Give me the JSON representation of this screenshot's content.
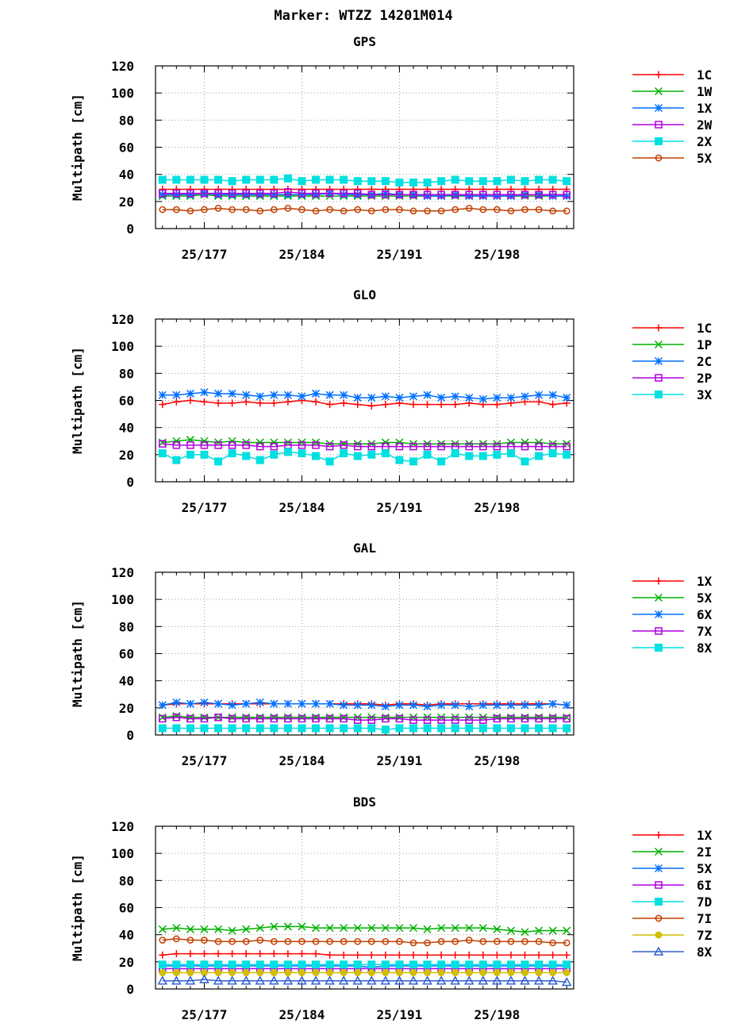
{
  "title": "Marker: WTZZ 14201M014",
  "chart_data": [
    {
      "type": "line",
      "title": "GPS",
      "ylabel": "Multipath [cm]",
      "ylim": [
        0,
        120
      ],
      "yticks": [
        0,
        20,
        40,
        60,
        80,
        100,
        120
      ],
      "xlim": [
        173.5,
        203.5
      ],
      "xticks": [
        {
          "x": 177,
          "label": "25/177"
        },
        {
          "x": 184,
          "label": "25/184"
        },
        {
          "x": 191,
          "label": "25/191"
        },
        {
          "x": 198,
          "label": "25/198"
        }
      ],
      "x": [
        174,
        175,
        176,
        177,
        178,
        179,
        180,
        181,
        182,
        183,
        184,
        185,
        186,
        187,
        188,
        189,
        190,
        191,
        192,
        193,
        194,
        195,
        196,
        197,
        198,
        199,
        200,
        201,
        202,
        203
      ],
      "grid": true,
      "legend": "right",
      "series": [
        {
          "name": "1C",
          "color": "#ff0000",
          "marker": "plus",
          "values": [
            29,
            29,
            29,
            29,
            29,
            29,
            29,
            29,
            29,
            29,
            29,
            29,
            29,
            29,
            29,
            29,
            29,
            29,
            29,
            29,
            29,
            29,
            29,
            29,
            29,
            29,
            29,
            29,
            29,
            29
          ]
        },
        {
          "name": "1W",
          "color": "#00b000",
          "marker": "x",
          "values": [
            24,
            24,
            24,
            25,
            24,
            24,
            24,
            24,
            24,
            24,
            24,
            24,
            24,
            24,
            24,
            24,
            24,
            24,
            24,
            24,
            24,
            24,
            24,
            24,
            24,
            24,
            24,
            24,
            24,
            24
          ]
        },
        {
          "name": "1X",
          "color": "#0070ff",
          "marker": "star",
          "values": [
            25,
            25,
            25,
            26,
            25,
            25,
            25,
            25,
            25,
            25,
            25,
            25,
            26,
            25,
            25,
            25,
            26,
            25,
            25,
            24,
            24,
            25,
            24,
            24,
            24,
            24,
            25,
            25,
            24,
            24
          ]
        },
        {
          "name": "2W",
          "color": "#b000e0",
          "marker": "square-open",
          "values": [
            26,
            26,
            26,
            26,
            26,
            26,
            26,
            26,
            26,
            27,
            26,
            26,
            26,
            26,
            26,
            25,
            25,
            25,
            25,
            25,
            25,
            25,
            25,
            25,
            25,
            25,
            25,
            25,
            25,
            25
          ]
        },
        {
          "name": "2X",
          "color": "#00e0e0",
          "marker": "square",
          "values": [
            36,
            36,
            36,
            36,
            36,
            35,
            36,
            36,
            36,
            37,
            35,
            36,
            36,
            36,
            35,
            35,
            35,
            34,
            34,
            34,
            35,
            36,
            35,
            35,
            35,
            36,
            35,
            36,
            36,
            35
          ]
        },
        {
          "name": "5X",
          "color": "#c04000",
          "marker": "circle-open",
          "values": [
            14,
            14,
            13,
            14,
            15,
            14,
            14,
            13,
            14,
            15,
            14,
            13,
            14,
            13,
            14,
            13,
            14,
            14,
            13,
            13,
            13,
            14,
            15,
            14,
            14,
            13,
            14,
            14,
            13,
            13
          ]
        }
      ]
    },
    {
      "type": "line",
      "title": "GLO",
      "ylabel": "Multipath [cm]",
      "ylim": [
        0,
        120
      ],
      "yticks": [
        0,
        20,
        40,
        60,
        80,
        100,
        120
      ],
      "xlim": [
        173.5,
        203.5
      ],
      "xticks": [
        {
          "x": 177,
          "label": "25/177"
        },
        {
          "x": 184,
          "label": "25/184"
        },
        {
          "x": 191,
          "label": "25/191"
        },
        {
          "x": 198,
          "label": "25/198"
        }
      ],
      "x": [
        174,
        175,
        176,
        177,
        178,
        179,
        180,
        181,
        182,
        183,
        184,
        185,
        186,
        187,
        188,
        189,
        190,
        191,
        192,
        193,
        194,
        195,
        196,
        197,
        198,
        199,
        200,
        201,
        202,
        203
      ],
      "grid": true,
      "legend": "right",
      "series": [
        {
          "name": "1C",
          "color": "#ff0000",
          "marker": "plus",
          "values": [
            57,
            59,
            60,
            59,
            58,
            58,
            59,
            58,
            58,
            59,
            60,
            59,
            57,
            58,
            57,
            56,
            57,
            58,
            57,
            57,
            57,
            57,
            58,
            57,
            57,
            58,
            59,
            59,
            57,
            58
          ]
        },
        {
          "name": "1P",
          "color": "#00b000",
          "marker": "x",
          "values": [
            29,
            30,
            31,
            30,
            29,
            30,
            29,
            29,
            29,
            29,
            29,
            29,
            28,
            28,
            28,
            28,
            29,
            29,
            28,
            28,
            28,
            28,
            28,
            28,
            28,
            29,
            29,
            29,
            28,
            28
          ]
        },
        {
          "name": "2C",
          "color": "#0070ff",
          "marker": "star",
          "values": [
            64,
            64,
            65,
            66,
            65,
            65,
            64,
            63,
            64,
            64,
            63,
            65,
            64,
            64,
            62,
            62,
            63,
            62,
            63,
            64,
            62,
            63,
            62,
            61,
            62,
            62,
            63,
            64,
            64,
            62
          ]
        },
        {
          "name": "2P",
          "color": "#b000e0",
          "marker": "square-open",
          "values": [
            28,
            27,
            27,
            27,
            27,
            27,
            27,
            26,
            26,
            27,
            27,
            27,
            26,
            27,
            26,
            26,
            26,
            26,
            26,
            26,
            26,
            26,
            26,
            26,
            26,
            26,
            26,
            26,
            26,
            26
          ]
        },
        {
          "name": "3X",
          "color": "#00e0e0",
          "marker": "square",
          "values": [
            21,
            16,
            20,
            20,
            15,
            21,
            19,
            16,
            20,
            22,
            21,
            19,
            15,
            21,
            19,
            20,
            21,
            16,
            15,
            20,
            15,
            21,
            19,
            19,
            20,
            21,
            15,
            19,
            21,
            20
          ]
        }
      ]
    },
    {
      "type": "line",
      "title": "GAL",
      "ylabel": "Multipath [cm]",
      "ylim": [
        0,
        120
      ],
      "yticks": [
        0,
        20,
        40,
        60,
        80,
        100,
        120
      ],
      "xlim": [
        173.5,
        203.5
      ],
      "xticks": [
        {
          "x": 177,
          "label": "25/177"
        },
        {
          "x": 184,
          "label": "25/184"
        },
        {
          "x": 191,
          "label": "25/191"
        },
        {
          "x": 198,
          "label": "25/198"
        }
      ],
      "x": [
        174,
        175,
        176,
        177,
        178,
        179,
        180,
        181,
        182,
        183,
        184,
        185,
        186,
        187,
        188,
        189,
        190,
        191,
        192,
        193,
        194,
        195,
        196,
        197,
        198,
        199,
        200,
        201,
        202,
        203
      ],
      "grid": true,
      "legend": "right",
      "series": [
        {
          "name": "1X",
          "color": "#ff0000",
          "marker": "plus",
          "values": [
            22,
            23,
            23,
            23,
            23,
            23,
            23,
            23,
            23,
            23,
            23,
            23,
            23,
            23,
            23,
            23,
            22,
            23,
            23,
            22,
            23,
            23,
            23,
            23,
            23,
            23,
            23,
            23,
            23,
            22
          ]
        },
        {
          "name": "5X",
          "color": "#00b000",
          "marker": "x",
          "values": [
            13,
            14,
            13,
            13,
            13,
            13,
            13,
            13,
            13,
            13,
            13,
            13,
            13,
            13,
            13,
            13,
            13,
            13,
            13,
            13,
            13,
            13,
            13,
            13,
            13,
            13,
            13,
            13,
            13,
            13
          ]
        },
        {
          "name": "6X",
          "color": "#0070ff",
          "marker": "star",
          "values": [
            22,
            24,
            23,
            24,
            23,
            22,
            23,
            24,
            23,
            23,
            23,
            23,
            23,
            22,
            22,
            22,
            21,
            22,
            22,
            21,
            22,
            22,
            21,
            22,
            22,
            22,
            22,
            22,
            23,
            22
          ]
        },
        {
          "name": "7X",
          "color": "#b000e0",
          "marker": "square-open",
          "values": [
            12,
            13,
            12,
            12,
            13,
            12,
            12,
            12,
            12,
            12,
            12,
            12,
            12,
            12,
            11,
            11,
            12,
            12,
            11,
            11,
            11,
            11,
            11,
            11,
            12,
            12,
            12,
            12,
            12,
            12
          ]
        },
        {
          "name": "8X",
          "color": "#00e0e0",
          "marker": "square",
          "values": [
            5,
            5,
            5,
            5,
            5,
            5,
            5,
            5,
            5,
            5,
            5,
            5,
            5,
            5,
            5,
            5,
            4,
            5,
            5,
            5,
            5,
            5,
            5,
            5,
            5,
            5,
            5,
            5,
            5,
            5
          ]
        }
      ]
    },
    {
      "type": "line",
      "title": "BDS",
      "ylabel": "Multipath [cm]",
      "ylim": [
        0,
        120
      ],
      "yticks": [
        0,
        20,
        40,
        60,
        80,
        100,
        120
      ],
      "xlim": [
        173.5,
        203.5
      ],
      "xticks": [
        {
          "x": 177,
          "label": "25/177"
        },
        {
          "x": 184,
          "label": "25/184"
        },
        {
          "x": 191,
          "label": "25/191"
        },
        {
          "x": 198,
          "label": "25/198"
        }
      ],
      "x": [
        174,
        175,
        176,
        177,
        178,
        179,
        180,
        181,
        182,
        183,
        184,
        185,
        186,
        187,
        188,
        189,
        190,
        191,
        192,
        193,
        194,
        195,
        196,
        197,
        198,
        199,
        200,
        201,
        202,
        203
      ],
      "grid": true,
      "legend": "right",
      "series": [
        {
          "name": "1X",
          "color": "#ff0000",
          "marker": "plus",
          "values": [
            25,
            26,
            26,
            26,
            26,
            26,
            26,
            26,
            26,
            26,
            26,
            26,
            25,
            25,
            25,
            25,
            25,
            25,
            25,
            25,
            25,
            25,
            25,
            25,
            25,
            25,
            25,
            25,
            25,
            25
          ]
        },
        {
          "name": "2I",
          "color": "#00b000",
          "marker": "x",
          "values": [
            44,
            45,
            44,
            44,
            44,
            43,
            44,
            45,
            46,
            46,
            46,
            45,
            45,
            45,
            45,
            45,
            45,
            45,
            45,
            44,
            45,
            45,
            45,
            45,
            44,
            43,
            42,
            43,
            43,
            43
          ]
        },
        {
          "name": "5X",
          "color": "#0070ff",
          "marker": "star",
          "values": [
            17,
            17,
            17,
            17,
            17,
            17,
            17,
            17,
            17,
            17,
            17,
            17,
            17,
            17,
            17,
            16,
            17,
            17,
            17,
            17,
            17,
            17,
            17,
            17,
            17,
            17,
            17,
            17,
            17,
            17
          ]
        },
        {
          "name": "6I",
          "color": "#b000e0",
          "marker": "square-open",
          "values": [
            15,
            15,
            15,
            15,
            15,
            15,
            15,
            15,
            15,
            15,
            15,
            15,
            15,
            15,
            15,
            15,
            15,
            15,
            15,
            15,
            15,
            15,
            15,
            15,
            15,
            15,
            15,
            15,
            15,
            15
          ]
        },
        {
          "name": "7D",
          "color": "#00e0e0",
          "marker": "square",
          "values": [
            18,
            18,
            18,
            18,
            18,
            18,
            18,
            18,
            18,
            18,
            18,
            18,
            18,
            18,
            18,
            18,
            18,
            18,
            18,
            18,
            18,
            18,
            18,
            18,
            18,
            18,
            18,
            18,
            18,
            18
          ]
        },
        {
          "name": "7I",
          "color": "#c04000",
          "marker": "circle-open",
          "values": [
            36,
            37,
            36,
            36,
            35,
            35,
            35,
            36,
            35,
            35,
            35,
            35,
            35,
            35,
            35,
            35,
            35,
            35,
            34,
            34,
            35,
            35,
            36,
            35,
            35,
            35,
            35,
            35,
            34,
            34
          ]
        },
        {
          "name": "7Z",
          "color": "#d0c000",
          "marker": "circle",
          "values": [
            12,
            12,
            12,
            12,
            12,
            12,
            12,
            12,
            12,
            12,
            12,
            12,
            12,
            12,
            12,
            12,
            12,
            12,
            12,
            12,
            12,
            12,
            12,
            12,
            12,
            12,
            12,
            12,
            12,
            12
          ]
        },
        {
          "name": "8X",
          "color": "#3060d0",
          "marker": "triangle-open",
          "values": [
            6,
            6,
            6,
            7,
            6,
            6,
            6,
            6,
            6,
            6,
            6,
            6,
            6,
            6,
            6,
            6,
            6,
            6,
            6,
            6,
            6,
            6,
            6,
            6,
            6,
            6,
            6,
            6,
            6,
            5
          ]
        }
      ]
    }
  ]
}
